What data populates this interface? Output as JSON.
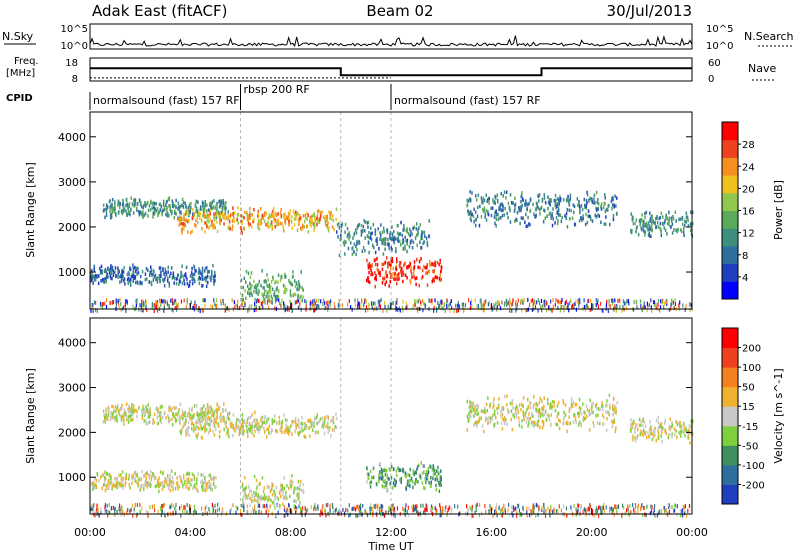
{
  "header": {
    "station": "Adak East (fitACF)",
    "beam": "Beam 02",
    "date": "30/Jul/2013"
  },
  "noise_panel": {
    "left_label": "N.Sky",
    "right_label": "N.Search",
    "left_ticks": [
      "10^5",
      "10^0"
    ],
    "right_ticks": [
      "10^5",
      "10^0"
    ]
  },
  "freq_panel": {
    "left_label_1": "Freq.",
    "left_label_2": "[MHz]",
    "right_label": "Nave",
    "left_ticks": [
      "18",
      "8"
    ],
    "right_ticks": [
      "60",
      "0"
    ],
    "freq_steps": [
      {
        "t_start": 0,
        "t_end": 10,
        "value": 13.5
      },
      {
        "t_start": 10,
        "t_end": 18,
        "value": 10.5
      },
      {
        "t_start": 18,
        "t_end": 24,
        "value": 13.5
      }
    ],
    "nave_level": 8
  },
  "cpid_panel": {
    "label": "CPID",
    "segments": [
      {
        "t_start": 0,
        "text": "normalsound (fast) 157 RF"
      },
      {
        "t_start": 6,
        "text": "rbsp 200 RF"
      },
      {
        "t_start": 12,
        "text": "normalsound (fast) 157 RF"
      }
    ]
  },
  "chart_data": [
    {
      "type": "heatmap",
      "name": "power",
      "ylabel": "Slant Range [km]",
      "yticks": [
        "4000",
        "3000",
        "2000",
        "1000"
      ],
      "ylim": [
        180,
        4550
      ],
      "colorbar": {
        "label": "Power [dB]",
        "ticks": [
          "28",
          "24",
          "20",
          "16",
          "12",
          "8",
          "4"
        ],
        "colors": [
          "#0000ff",
          "#1f3fbf",
          "#2f6f9f",
          "#3f8f7f",
          "#5aaa5a",
          "#8fc84a",
          "#f0c020",
          "#f59020",
          "#ef4020",
          "#ff0000"
        ]
      },
      "features": [
        {
          "t_start": 0.5,
          "t_end": 5.5,
          "r_low": 2200,
          "r_high": 2700,
          "level": 0.35
        },
        {
          "t_start": 3.5,
          "t_end": 9.8,
          "r_low": 1900,
          "r_high": 2500,
          "level": 0.7
        },
        {
          "t_start": 0.0,
          "t_end": 5.0,
          "r_low": 700,
          "r_high": 1200,
          "level": 0.25
        },
        {
          "t_start": 6.0,
          "t_end": 8.5,
          "r_low": 300,
          "r_high": 1100,
          "level": 0.45
        },
        {
          "t_start": 9.8,
          "t_end": 13.5,
          "r_low": 1400,
          "r_high": 2200,
          "level": 0.3
        },
        {
          "t_start": 11.0,
          "t_end": 14.0,
          "r_low": 700,
          "r_high": 1400,
          "level": 0.9
        },
        {
          "t_start": 15.0,
          "t_end": 21.0,
          "r_low": 2000,
          "r_high": 2900,
          "level": 0.3
        },
        {
          "t_start": 21.5,
          "t_end": 24.0,
          "r_low": 1800,
          "r_high": 2400,
          "level": 0.35
        }
      ]
    },
    {
      "type": "heatmap",
      "name": "velocity",
      "ylabel": "Slant Range [km]",
      "yticks": [
        "4000",
        "3000",
        "2000",
        "1000"
      ],
      "ylim": [
        180,
        4550
      ],
      "colorbar": {
        "label": "Velocity [m s^-1]",
        "ticks": [
          "200",
          "100",
          "50",
          "15",
          "-15",
          "-50",
          "-100",
          "-200"
        ],
        "colors": [
          "#1f3fbf",
          "#2f6f9f",
          "#3f8f5f",
          "#7fcf3f",
          "#c8c8c8",
          "#f0b030",
          "#f58020",
          "#ef4020",
          "#ff0000"
        ]
      },
      "features": [
        {
          "t_start": 0.5,
          "t_end": 5.5,
          "r_low": 2200,
          "r_high": 2700,
          "level": 0.5
        },
        {
          "t_start": 3.5,
          "t_end": 9.8,
          "r_low": 1900,
          "r_high": 2500,
          "level": 0.5
        },
        {
          "t_start": 0.0,
          "t_end": 5.0,
          "r_low": 700,
          "r_high": 1200,
          "level": 0.5
        },
        {
          "t_start": 6.0,
          "t_end": 8.5,
          "r_low": 300,
          "r_high": 1100,
          "level": 0.5
        },
        {
          "t_start": 11.0,
          "t_end": 14.0,
          "r_low": 700,
          "r_high": 1400,
          "level": 0.3
        },
        {
          "t_start": 15.0,
          "t_end": 21.0,
          "r_low": 2000,
          "r_high": 2900,
          "level": 0.5
        },
        {
          "t_start": 21.5,
          "t_end": 24.0,
          "r_low": 1800,
          "r_high": 2400,
          "level": 0.5
        }
      ]
    }
  ],
  "x_axis": {
    "ticks": [
      "00:00",
      "04:00",
      "08:00",
      "12:00",
      "16:00",
      "20:00",
      "00:00"
    ],
    "label": "Time UT",
    "range_hours": [
      0,
      24
    ]
  }
}
